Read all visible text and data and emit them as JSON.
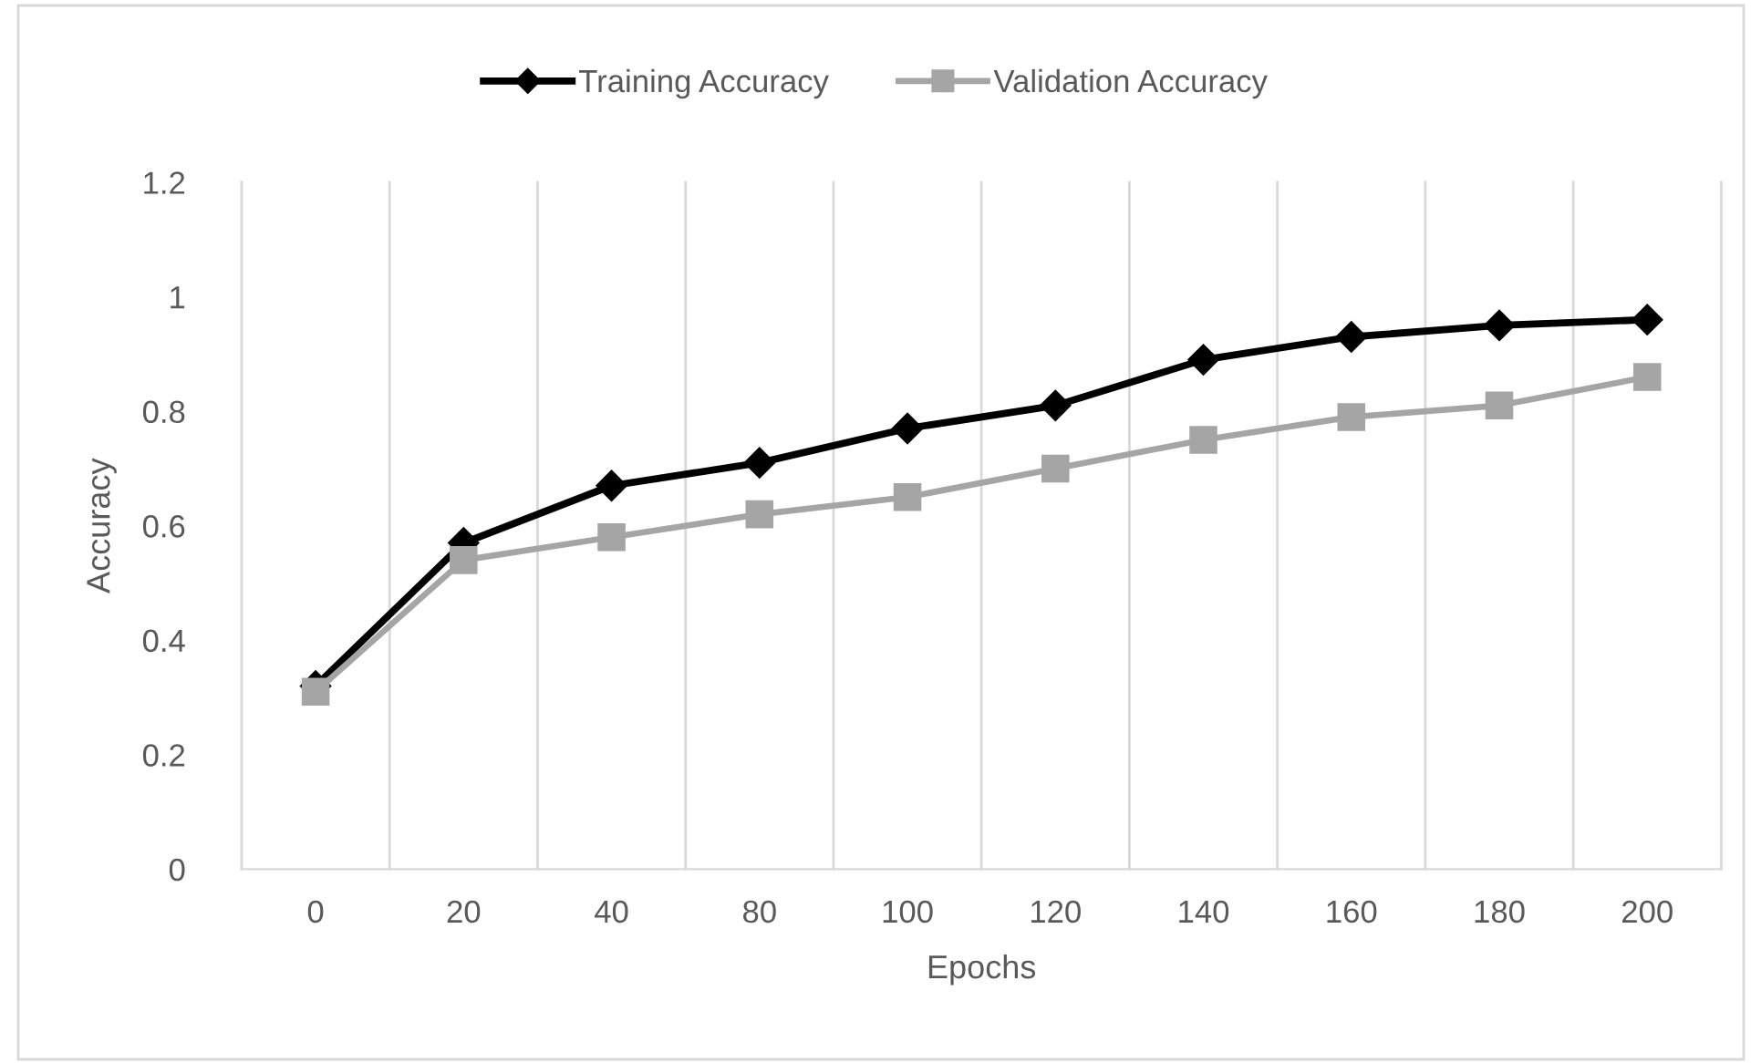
{
  "chart_data": {
    "type": "line",
    "xlabel": "Epochs",
    "ylabel": "Accuracy",
    "categories": [
      "0",
      "20",
      "40",
      "80",
      "100",
      "120",
      "140",
      "160",
      "180",
      "200"
    ],
    "series": [
      {
        "name": "Training Accuracy",
        "color": "#000000",
        "marker": "diamond",
        "values": [
          0.32,
          0.57,
          0.67,
          0.71,
          0.77,
          0.81,
          0.89,
          0.93,
          0.95,
          0.96
        ]
      },
      {
        "name": "Validation Accuracy",
        "color": "#a5a5a5",
        "marker": "square",
        "values": [
          0.31,
          0.54,
          0.58,
          0.62,
          0.65,
          0.7,
          0.75,
          0.79,
          0.81,
          0.86
        ]
      }
    ],
    "ylim": [
      0,
      1.2
    ],
    "yticks": [
      0,
      0.2,
      0.4,
      0.6,
      0.8,
      1,
      1.2
    ],
    "grid": "x",
    "legend": "top",
    "line_style": "solid"
  }
}
